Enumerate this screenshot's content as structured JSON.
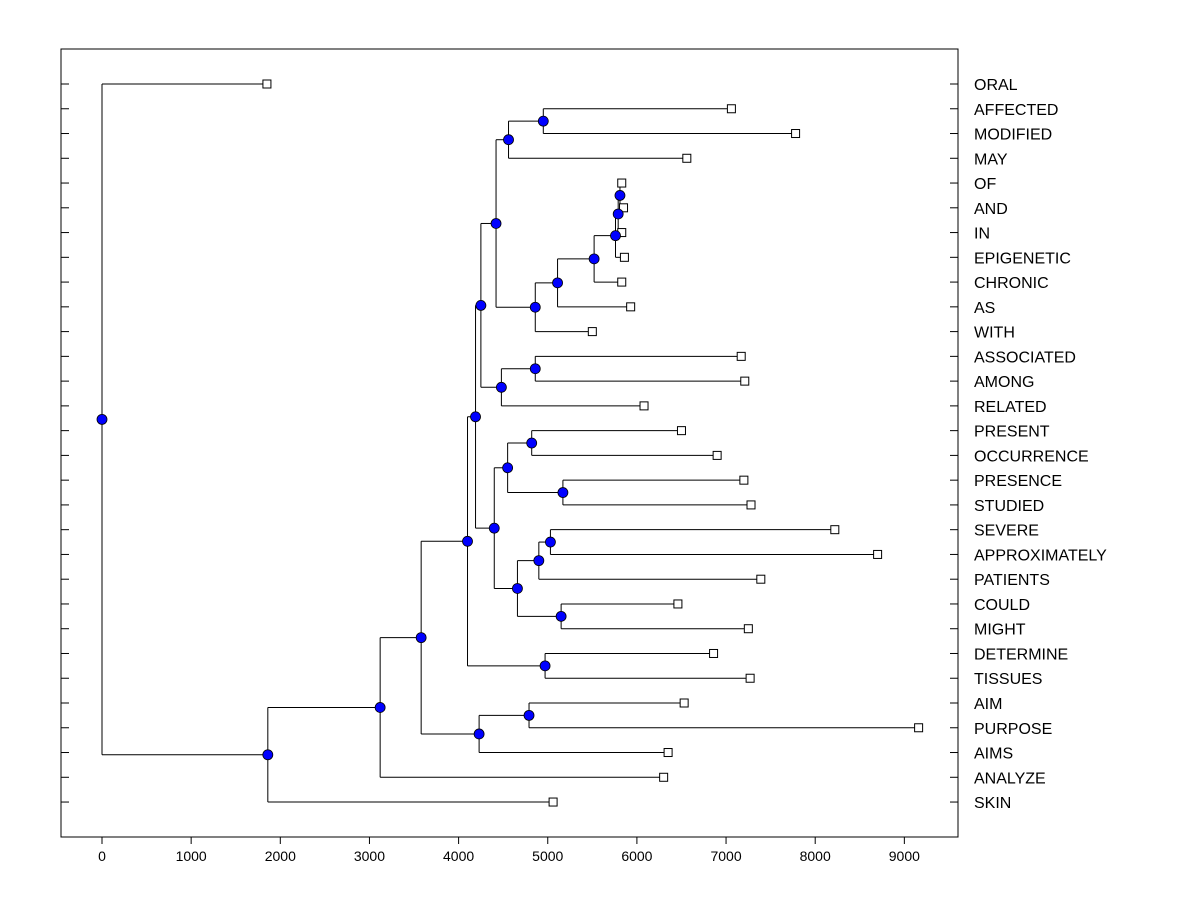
{
  "chart_data": {
    "type": "dendrogram",
    "title": "",
    "xlabel": "",
    "ylabel": "",
    "xlim": [
      -450,
      9600
    ],
    "xticks": [
      0,
      1000,
      2000,
      3000,
      4000,
      5000,
      6000,
      7000,
      8000,
      9000
    ],
    "xtick_labels": [
      "0",
      "1000",
      "2000",
      "3000",
      "4000",
      "5000",
      "6000",
      "7000",
      "8000",
      "9000"
    ],
    "grid": false,
    "colors": {
      "node_fill": "#0000ff",
      "line": "#000000",
      "leaf_fill": "#ffffff"
    },
    "leaves": [
      {
        "label": "ORAL",
        "x": 1850
      },
      {
        "label": "AFFECTED",
        "x": 7060
      },
      {
        "label": "MODIFIED",
        "x": 7780
      },
      {
        "label": "MAY",
        "x": 6560
      },
      {
        "label": "OF",
        "x": 5830
      },
      {
        "label": "AND",
        "x": 5850
      },
      {
        "label": "IN",
        "x": 5830
      },
      {
        "label": "EPIGENETIC",
        "x": 5860
      },
      {
        "label": "CHRONIC",
        "x": 5830
      },
      {
        "label": "AS",
        "x": 5930
      },
      {
        "label": "WITH",
        "x": 5500
      },
      {
        "label": "ASSOCIATED",
        "x": 7170
      },
      {
        "label": "AMONG",
        "x": 7210
      },
      {
        "label": "RELATED",
        "x": 6080
      },
      {
        "label": "PRESENT",
        "x": 6500
      },
      {
        "label": "OCCURRENCE",
        "x": 6900
      },
      {
        "label": "PRESENCE",
        "x": 7200
      },
      {
        "label": "STUDIED",
        "x": 7280
      },
      {
        "label": "SEVERE",
        "x": 8220
      },
      {
        "label": "APPROXIMATELY",
        "x": 8700
      },
      {
        "label": "PATIENTS",
        "x": 7390
      },
      {
        "label": "COULD",
        "x": 6460
      },
      {
        "label": "MIGHT",
        "x": 7250
      },
      {
        "label": "DETERMINE",
        "x": 6860
      },
      {
        "label": "TISSUES",
        "x": 7270
      },
      {
        "label": "AIM",
        "x": 6530
      },
      {
        "label": "PURPOSE",
        "x": 9160
      },
      {
        "label": "AIMS",
        "x": 6350
      },
      {
        "label": "ANALYZE",
        "x": 6300
      },
      {
        "label": "SKIN",
        "x": 5060
      }
    ],
    "merges": [
      {
        "id": "N1",
        "x": 5810,
        "children": [
          "L4",
          "L5"
        ]
      },
      {
        "id": "N2",
        "x": 5790,
        "children": [
          "N1",
          "L6"
        ]
      },
      {
        "id": "N3",
        "x": 5760,
        "children": [
          "N2",
          "L7"
        ]
      },
      {
        "id": "N4",
        "x": 5520,
        "children": [
          "N3",
          "L8"
        ]
      },
      {
        "id": "N5",
        "x": 5110,
        "children": [
          "N4",
          "L9"
        ]
      },
      {
        "id": "N6",
        "x": 4860,
        "children": [
          "N5",
          "L10"
        ]
      },
      {
        "id": "N7",
        "x": 4950,
        "children": [
          "L1",
          "L2"
        ]
      },
      {
        "id": "N8",
        "x": 4560,
        "children": [
          "N7",
          "L3"
        ]
      },
      {
        "id": "N9",
        "x": 4420,
        "children": [
          "N8",
          "N6"
        ]
      },
      {
        "id": "N10",
        "x": 4860,
        "children": [
          "L11",
          "L12"
        ]
      },
      {
        "id": "N11",
        "x": 4480,
        "children": [
          "N10",
          "L13"
        ]
      },
      {
        "id": "N12",
        "x": 4250,
        "children": [
          "N9",
          "N11"
        ]
      },
      {
        "id": "N13",
        "x": 4820,
        "children": [
          "L14",
          "L15"
        ]
      },
      {
        "id": "N14",
        "x": 5170,
        "children": [
          "L16",
          "L17"
        ]
      },
      {
        "id": "N15",
        "x": 4550,
        "children": [
          "N13",
          "N14"
        ]
      },
      {
        "id": "N16",
        "x": 5030,
        "children": [
          "L18",
          "L19"
        ]
      },
      {
        "id": "N17",
        "x": 4900,
        "children": [
          "N16",
          "L20"
        ]
      },
      {
        "id": "N18",
        "x": 5150,
        "children": [
          "L21",
          "L22"
        ]
      },
      {
        "id": "N19",
        "x": 4660,
        "children": [
          "N17",
          "N18"
        ]
      },
      {
        "id": "N20",
        "x": 4400,
        "children": [
          "N15",
          "N19"
        ]
      },
      {
        "id": "N21",
        "x": 4190,
        "children": [
          "N12",
          "N20"
        ]
      },
      {
        "id": "N22",
        "x": 4970,
        "children": [
          "L23",
          "L24"
        ]
      },
      {
        "id": "N23",
        "x": 4100,
        "children": [
          "N21",
          "N22"
        ]
      },
      {
        "id": "N24",
        "x": 4790,
        "children": [
          "L25",
          "L26"
        ]
      },
      {
        "id": "N25",
        "x": 4230,
        "children": [
          "N24",
          "L27"
        ]
      },
      {
        "id": "N26",
        "x": 3580,
        "children": [
          "N23",
          "N25"
        ]
      },
      {
        "id": "N27",
        "x": 3120,
        "children": [
          "N26",
          "L28"
        ]
      },
      {
        "id": "N28",
        "x": 1860,
        "children": [
          "N27",
          "L29"
        ]
      },
      {
        "id": "N29",
        "x": 0,
        "children": [
          "L0",
          "N28"
        ]
      }
    ]
  }
}
